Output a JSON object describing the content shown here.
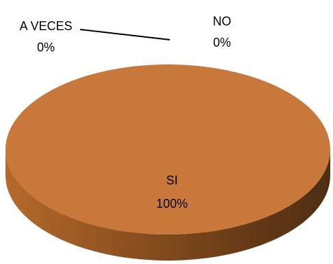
{
  "chart_data": {
    "type": "pie",
    "categories": [
      "SI",
      "NO",
      "A VECES"
    ],
    "values": [
      100,
      0,
      0
    ],
    "data_labels": [
      {
        "category": "SI",
        "percent": "100%"
      },
      {
        "category": "NO",
        "percent": "0%"
      },
      {
        "category": "A VECES",
        "percent": "0%"
      }
    ],
    "style": "3d",
    "legend": "none",
    "colors": {
      "SI": "#C8783A",
      "side_light": "#B56A2C",
      "side_dark": "#4E2E12",
      "leader_line": "#000000"
    }
  }
}
